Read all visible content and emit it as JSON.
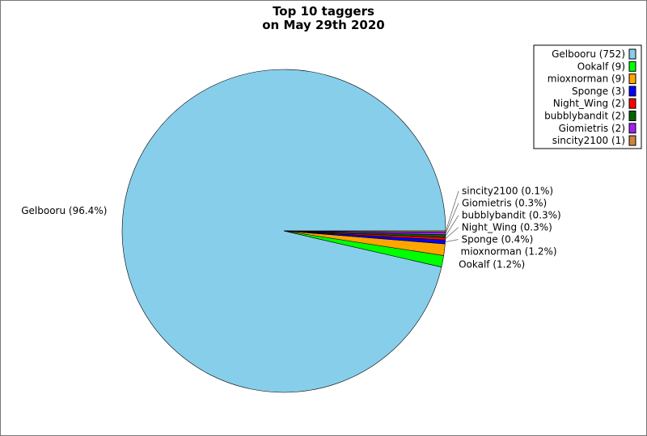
{
  "chart_data": {
    "type": "pie",
    "title": "Top 10 taggers",
    "subtitle": "on May 29th 2020",
    "start_angle_deg": 0,
    "direction": "counterclockwise",
    "legend_placement": "top-right",
    "slices": [
      {
        "name": "Gelbooru",
        "value": 752,
        "percent_label": "Gelbooru (96.4%)",
        "legend_label": "Gelbooru (752)",
        "color": "#87ceeb"
      },
      {
        "name": "Ookalf",
        "value": 9,
        "percent_label": "Ookalf (1.2%)",
        "legend_label": "Ookalf (9)",
        "color": "#00ff00"
      },
      {
        "name": "mioxnorman",
        "value": 9,
        "percent_label": "mioxnorman (1.2%)",
        "legend_label": "mioxnorman (9)",
        "color": "#ffa500"
      },
      {
        "name": "Sponge",
        "value": 3,
        "percent_label": "Sponge (0.4%)",
        "legend_label": "Sponge (3)",
        "color": "#0000ff"
      },
      {
        "name": "Night_Wing",
        "value": 2,
        "percent_label": "Night_Wing (0.3%)",
        "legend_label": "Night_Wing (2)",
        "color": "#ff0000"
      },
      {
        "name": "bubblybandit",
        "value": 2,
        "percent_label": "bubblybandit (0.3%)",
        "legend_label": "bubblybandit (2)",
        "color": "#006400"
      },
      {
        "name": "Giomietris",
        "value": 2,
        "percent_label": "Giomietris (0.3%)",
        "legend_label": "Giomietris (2)",
        "color": "#a020f0"
      },
      {
        "name": "sincity2100",
        "value": 1,
        "percent_label": "sincity2100 (0.1%)",
        "legend_label": "sincity2100 (1)",
        "color": "#cd853f"
      }
    ]
  }
}
